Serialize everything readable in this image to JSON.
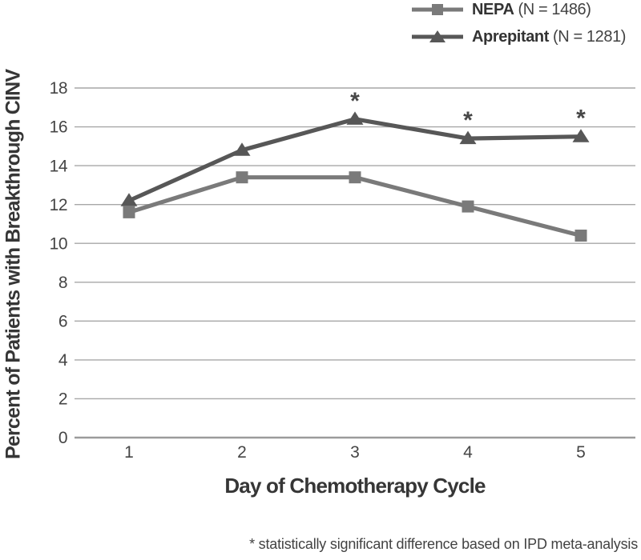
{
  "legend": {
    "items": [
      {
        "name": "NEPA",
        "n_label": "(N = 1486)",
        "marker": "square",
        "color": "#7a7a7a"
      },
      {
        "name": "Aprepitant",
        "n_label": "(N = 1281)",
        "marker": "triangle",
        "color": "#575757"
      }
    ]
  },
  "chart_data": {
    "type": "line",
    "x": [
      1,
      2,
      3,
      4,
      5
    ],
    "xlabel": "Day of Chemotherapy Cycle",
    "ylabel": "Percent of Patients with Breakthrough CINV",
    "ylim": [
      0,
      18
    ],
    "ytick_step": 2,
    "grid": true,
    "legend_position": "top-right",
    "annotation_symbol": "*",
    "series": [
      {
        "name": "NEPA",
        "n": 1486,
        "marker": "square",
        "color": "#7a7a7a",
        "values": [
          11.6,
          13.4,
          13.4,
          11.9,
          10.4
        ],
        "significant_days": []
      },
      {
        "name": "Aprepitant",
        "n": 1281,
        "marker": "triangle",
        "color": "#575757",
        "values": [
          12.2,
          14.8,
          16.4,
          15.4,
          15.5
        ],
        "significant_days": [
          3,
          4,
          5
        ]
      }
    ]
  },
  "footnote": "* statistically significant difference based on IPD meta-analysis",
  "colors": {
    "grid": "#a7a7a7",
    "axis": "#9b9b9b",
    "tick_text": "#454545",
    "title_text": "#363636",
    "annotation": "#474747"
  }
}
